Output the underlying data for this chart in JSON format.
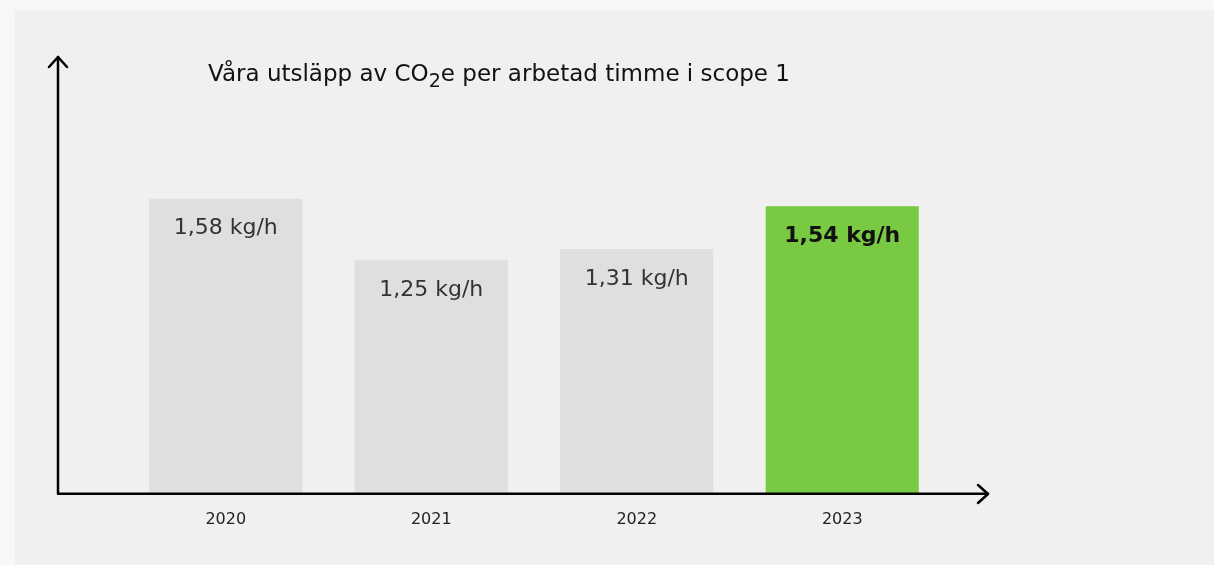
{
  "chart_data": {
    "type": "bar",
    "title": "Våra utsläpp av CO$_{2}$e per arbetad timme i scope 1",
    "categories": [
      "2020",
      "2021",
      "2022",
      "2023"
    ],
    "values": [
      1.58,
      1.25,
      1.31,
      1.54
    ],
    "colors": [
      "#dfdfdf",
      "#dfdfdf",
      "#dfdfdf",
      "#7ac943"
    ],
    "value_labels": [
      "1,58 kg/h",
      "1,25 kg/h",
      "1,31 kg/h",
      "1,54 kg/h"
    ],
    "grid": false,
    "legend": false
  }
}
